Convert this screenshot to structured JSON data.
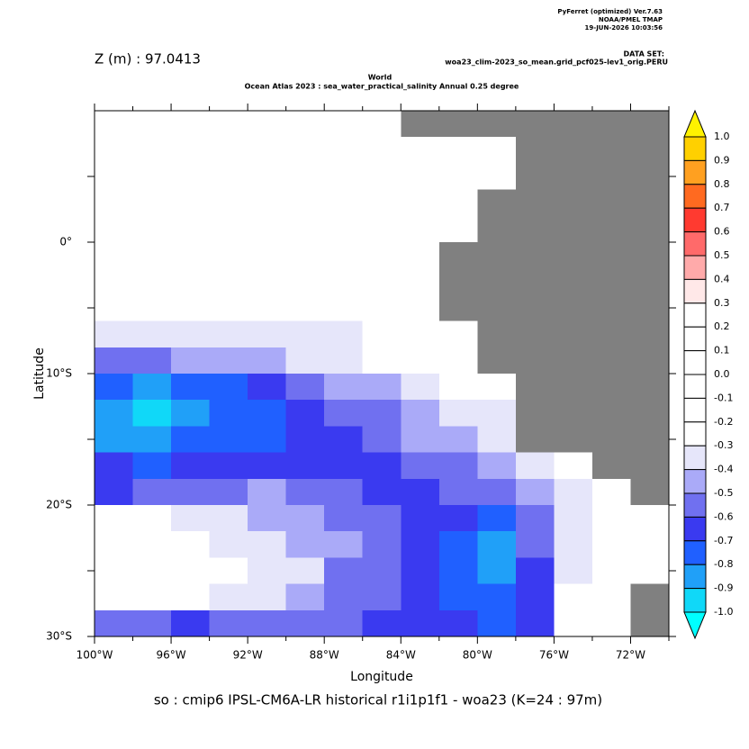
{
  "chart_data": {
    "type": "heatmap",
    "header": [
      "PyFerret (optimized) Ver.7.63",
      "NOAA/PMEL TMAP",
      "19-JUN-2026 10:03:56"
    ],
    "dataset_label": "DATA SET:",
    "dataset": "woa23_clim-2023_so_mean.grid_pcf025-lev1_orig.PERU",
    "depth_label": "Z (m) : 97.0413",
    "title": "World",
    "subtitle": "Ocean Atlas 2023 : sea_water_practical_salinity Annual  0.25 degree",
    "xlabel": "Longitude",
    "ylabel": "Latitude",
    "caption": "so : cmip6 IPSL-CM6A-LR historical r1i1p1f1 - woa23  (K=24 : 97m)",
    "xlim": [
      -100,
      -70
    ],
    "ylim": [
      -30,
      10
    ],
    "xticks": [
      {
        "value": -100,
        "label": "100°W"
      },
      {
        "value": -96,
        "label": "96°W"
      },
      {
        "value": -92,
        "label": "92°W"
      },
      {
        "value": -88,
        "label": "88°W"
      },
      {
        "value": -84,
        "label": "84°W"
      },
      {
        "value": -80,
        "label": "80°W"
      },
      {
        "value": -76,
        "label": "76°W"
      },
      {
        "value": -72,
        "label": "72°W"
      }
    ],
    "xminorticks": [
      -98,
      -94,
      -90,
      -86,
      -82,
      -78,
      -74,
      -70
    ],
    "yticks": [
      {
        "value": 0,
        "label": "0°"
      },
      {
        "value": -10,
        "label": "10°S"
      },
      {
        "value": -20,
        "label": "20°S"
      },
      {
        "value": -30,
        "label": "30°S"
      }
    ],
    "yminorticks": [
      5,
      -5,
      -15,
      -25
    ],
    "land_color": "#808080",
    "z": [
      [
        0.1,
        0.1,
        0.1,
        0.1,
        0.1,
        0.1,
        0.1,
        0.1,
        null,
        null,
        null,
        null,
        null,
        null,
        null
      ],
      [
        0.1,
        0.1,
        0.1,
        0.1,
        0.1,
        0.1,
        0.1,
        0.1,
        0.1,
        0.1,
        0.1,
        null,
        null,
        null,
        null
      ],
      [
        0.1,
        0.1,
        0.1,
        0.1,
        0.1,
        0.1,
        0.1,
        0.1,
        0.1,
        0.1,
        0.1,
        null,
        null,
        null,
        null
      ],
      [
        0.1,
        0.1,
        0.1,
        0.1,
        0.1,
        0.1,
        0.1,
        0.1,
        0.1,
        0.1,
        null,
        null,
        null,
        null,
        null
      ],
      [
        0.1,
        0.1,
        0.1,
        0.1,
        0.1,
        0.1,
        0.1,
        0.1,
        0.1,
        0.1,
        null,
        null,
        null,
        null,
        null
      ],
      [
        0.1,
        0.1,
        0.1,
        0.1,
        0.1,
        0.1,
        0.1,
        0.1,
        0.1,
        null,
        null,
        null,
        null,
        null,
        null
      ],
      [
        0.1,
        0.1,
        0.1,
        0.1,
        0.1,
        0.1,
        0.1,
        0.1,
        0.1,
        null,
        null,
        null,
        null,
        null,
        null
      ],
      [
        0.1,
        0.1,
        0.1,
        0.1,
        0.1,
        0.1,
        0.1,
        0.1,
        0.1,
        null,
        null,
        null,
        null,
        null,
        null
      ],
      [
        -0.4,
        -0.4,
        -0.4,
        -0.4,
        -0.35,
        -0.35,
        -0.35,
        0.1,
        0.1,
        0.1,
        null,
        null,
        null,
        null,
        null
      ],
      [
        -0.6,
        -0.55,
        -0.5,
        -0.5,
        -0.45,
        -0.4,
        -0.35,
        0.1,
        0.1,
        0.1,
        null,
        null,
        null,
        null,
        null
      ],
      [
        -0.8,
        -0.85,
        -0.8,
        -0.75,
        -0.7,
        -0.6,
        -0.5,
        -0.45,
        -0.35,
        0.1,
        0.1,
        null,
        null,
        null,
        null
      ],
      [
        -0.9,
        -0.95,
        -0.85,
        -0.8,
        -0.75,
        -0.7,
        -0.6,
        -0.55,
        -0.45,
        -0.4,
        -0.35,
        null,
        null,
        null,
        null
      ],
      [
        -0.85,
        -0.85,
        -0.8,
        -0.8,
        -0.75,
        -0.7,
        -0.65,
        -0.6,
        -0.5,
        -0.45,
        -0.35,
        null,
        null,
        null,
        null
      ],
      [
        -0.7,
        -0.75,
        -0.7,
        -0.7,
        -0.7,
        -0.7,
        -0.65,
        -0.65,
        -0.6,
        -0.55,
        -0.45,
        -0.35,
        0.1,
        null,
        null
      ],
      [
        -0.65,
        -0.6,
        -0.55,
        -0.55,
        -0.5,
        -0.55,
        -0.6,
        -0.65,
        -0.65,
        -0.6,
        -0.6,
        -0.5,
        -0.35,
        0.1,
        null
      ],
      [
        0.1,
        0.1,
        -0.35,
        -0.4,
        -0.45,
        -0.5,
        -0.55,
        -0.6,
        -0.65,
        -0.7,
        -0.75,
        -0.55,
        -0.35,
        0.1,
        0.1
      ],
      [
        0.1,
        0.1,
        0.1,
        -0.35,
        -0.4,
        -0.45,
        -0.5,
        -0.6,
        -0.65,
        -0.75,
        -0.85,
        -0.6,
        -0.4,
        0.1,
        0.1
      ],
      [
        0.1,
        0.1,
        0.1,
        0.1,
        -0.35,
        -0.4,
        -0.55,
        -0.6,
        -0.65,
        -0.8,
        -0.9,
        -0.65,
        -0.4,
        0.1,
        0.1
      ],
      [
        0.1,
        0.1,
        0.1,
        -0.35,
        -0.35,
        -0.45,
        -0.55,
        -0.6,
        -0.7,
        -0.75,
        -0.75,
        -0.65,
        0.1,
        0.1,
        null
      ],
      [
        -0.6,
        -0.6,
        -0.65,
        -0.6,
        -0.6,
        -0.6,
        -0.6,
        -0.65,
        -0.65,
        -0.7,
        -0.75,
        -0.65,
        0.1,
        0.1,
        null
      ]
    ],
    "levels": [
      {
        "value": 1,
        "label": "1.0"
      },
      0.9,
      0.8,
      0.7,
      0.6,
      0.5,
      0.4,
      0.3,
      0.2,
      0.1,
      {
        "value": 0,
        "label": "0.0"
      },
      -0.1,
      -0.2,
      -0.3,
      -0.4,
      -0.5,
      -0.6,
      -0.7,
      -0.8,
      -0.9,
      {
        "value": -1,
        "label": "-1.0"
      }
    ],
    "colors": [
      "#fff200",
      "#ffd000",
      "#ffa020",
      "#ff6a20",
      "#ff3a30",
      "#ff6a6a",
      "#ffaaaa",
      "#ffe8e8",
      "#ffffff",
      "#ffffff",
      "#ffffff",
      "#ffffff",
      "#ffffff",
      "#ffffff",
      "#e6e6fa",
      "#aaaaf8",
      "#7070f0",
      "#3a3af0",
      "#2060ff",
      "#20a0f8",
      "#10d8f8",
      "#00ffff"
    ]
  }
}
